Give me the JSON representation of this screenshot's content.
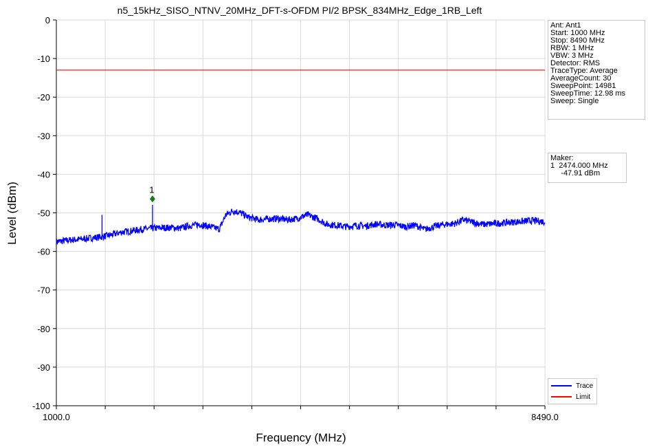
{
  "chart_data": {
    "type": "line",
    "title": "n5_15kHz_SISO_NTNV_20MHz_DFT-s-OFDM PI/2 BPSK_834MHz_Edge_1RB_Left",
    "xlabel": "Frequency (MHz)",
    "ylabel": "Level (dBm)",
    "xlim": [
      1000,
      8490
    ],
    "ylim": [
      -100,
      0
    ],
    "x_tick_labels": [
      "1000.0",
      "8490.0"
    ],
    "y_ticks": [
      0,
      -10,
      -20,
      -30,
      -40,
      -50,
      -60,
      -70,
      -80,
      -90,
      -100
    ],
    "grid": true,
    "legend_placement": "bottom-right",
    "series": [
      {
        "name": "Trace",
        "color": "#0000ff",
        "x": [
          1000,
          1100,
          1250,
          1400,
          1550,
          1700,
          1850,
          2000,
          2150,
          2300,
          2474,
          2600,
          2750,
          2900,
          3050,
          3200,
          3350,
          3500,
          3600,
          3700,
          3800,
          3950,
          4100,
          4250,
          4400,
          4550,
          4700,
          4850,
          5000,
          5150,
          5300,
          5450,
          5600,
          5750,
          5900,
          6050,
          6200,
          6350,
          6500,
          6650,
          6800,
          6950,
          7100,
          7250,
          7400,
          7550,
          7700,
          7850,
          8000,
          8150,
          8300,
          8490
        ],
        "y": [
          -57.5,
          -57.3,
          -57.0,
          -56.8,
          -56.5,
          -56.2,
          -55.7,
          -55.0,
          -54.7,
          -54.3,
          -54.0,
          -53.9,
          -53.8,
          -54.0,
          -53.3,
          -53.0,
          -53.6,
          -54.2,
          -50.5,
          -49.5,
          -49.8,
          -51.2,
          -51.8,
          -51.6,
          -51.5,
          -51.8,
          -51.4,
          -50.5,
          -51.5,
          -53.0,
          -53.2,
          -53.6,
          -53.3,
          -53.4,
          -52.9,
          -53.2,
          -53.1,
          -53.6,
          -53.2,
          -54.3,
          -53.5,
          -53.0,
          -52.8,
          -51.8,
          -52.5,
          -53.0,
          -52.8,
          -52.6,
          -52.4,
          -52.2,
          -52.0,
          -52.3
        ]
      },
      {
        "name": "Limit",
        "color": "#ff0000",
        "x": [
          1000,
          8490
        ],
        "y": [
          -13,
          -13
        ]
      }
    ],
    "spurs": [
      {
        "x": 1700,
        "y": -50.5
      },
      {
        "x": 2474,
        "y": -47.9
      }
    ],
    "marker": {
      "label": "1",
      "x": 2474,
      "y": -46.4,
      "color": "#1a7a1a"
    }
  },
  "settings_box": {
    "lines": [
      "Ant: Ant1",
      "Start: 1000 MHz",
      "Stop: 8490 MHz",
      "RBW: 1 MHz",
      "VBW: 3 MHz",
      "Detector: RMS",
      "TraceType: Average",
      "AverageCount: 30",
      "SweepPoint: 14981",
      "SweepTime: 12.98 ms",
      "Sweep: Single"
    ]
  },
  "marker_box": {
    "heading": "Maker:",
    "line1": "1  2474.000 MHz",
    "line2": "     -47.91 dBm"
  },
  "legend": {
    "items": [
      {
        "label": "Trace",
        "color": "#0000ff"
      },
      {
        "label": "Limit",
        "color": "#ff0000"
      }
    ]
  }
}
